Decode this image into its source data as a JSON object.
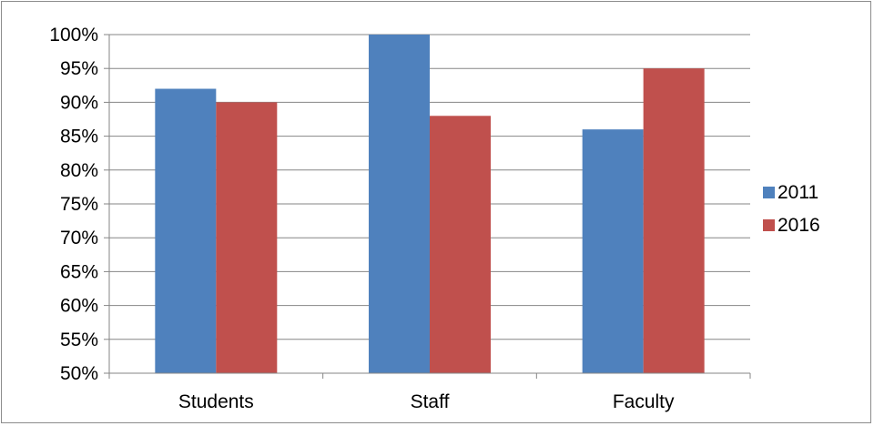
{
  "chart_data": {
    "type": "bar",
    "title": "",
    "xlabel": "",
    "ylabel": "",
    "categories": [
      "Students",
      "Staff",
      "Faculty"
    ],
    "series": [
      {
        "name": "2011",
        "values": [
          92,
          100,
          86
        ],
        "color": "#4F81BD"
      },
      {
        "name": "2016",
        "values": [
          90,
          88,
          95
        ],
        "color": "#C0504D"
      }
    ],
    "ylim": [
      50,
      100
    ],
    "yticks": [
      50,
      55,
      60,
      65,
      70,
      75,
      80,
      85,
      90,
      95,
      100
    ],
    "ytick_labels": [
      "50%",
      "55%",
      "60%",
      "65%",
      "70%",
      "75%",
      "80%",
      "85%",
      "90%",
      "95%",
      "100%"
    ],
    "grid": true,
    "legend_position": "right",
    "gridline_color": "#868686"
  }
}
